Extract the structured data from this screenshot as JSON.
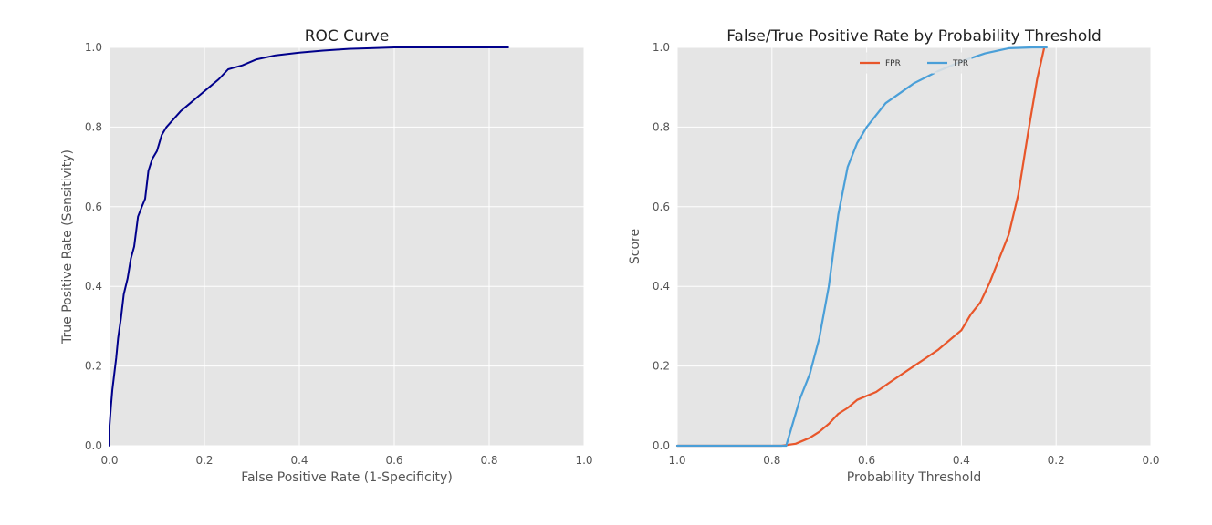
{
  "chart_data": [
    {
      "type": "line",
      "title": "ROC Curve",
      "xlabel": "False Positive Rate (1-Specificity)",
      "ylabel": "True Positive Rate (Sensitivity)",
      "xlim": [
        0.0,
        1.0
      ],
      "ylim": [
        0.0,
        1.0
      ],
      "xticks": [
        "0.0",
        "0.2",
        "0.4",
        "0.6",
        "0.8",
        "1.0"
      ],
      "yticks": [
        "0.0",
        "0.2",
        "0.4",
        "0.6",
        "0.8",
        "1.0"
      ],
      "grid": true,
      "series": [
        {
          "color": "#00008b",
          "points": [
            [
              0.0,
              0.0
            ],
            [
              0.0,
              0.05
            ],
            [
              0.003,
              0.1
            ],
            [
              0.006,
              0.14
            ],
            [
              0.01,
              0.18
            ],
            [
              0.014,
              0.22
            ],
            [
              0.018,
              0.27
            ],
            [
              0.024,
              0.32
            ],
            [
              0.03,
              0.38
            ],
            [
              0.038,
              0.42
            ],
            [
              0.045,
              0.47
            ],
            [
              0.052,
              0.5
            ],
            [
              0.06,
              0.575
            ],
            [
              0.068,
              0.6
            ],
            [
              0.075,
              0.62
            ],
            [
              0.082,
              0.69
            ],
            [
              0.09,
              0.72
            ],
            [
              0.1,
              0.74
            ],
            [
              0.11,
              0.78
            ],
            [
              0.12,
              0.8
            ],
            [
              0.135,
              0.82
            ],
            [
              0.15,
              0.84
            ],
            [
              0.17,
              0.86
            ],
            [
              0.19,
              0.88
            ],
            [
              0.21,
              0.9
            ],
            [
              0.23,
              0.92
            ],
            [
              0.25,
              0.945
            ],
            [
              0.28,
              0.955
            ],
            [
              0.31,
              0.97
            ],
            [
              0.35,
              0.98
            ],
            [
              0.4,
              0.987
            ],
            [
              0.45,
              0.992
            ],
            [
              0.5,
              0.996
            ],
            [
              0.55,
              0.998
            ],
            [
              0.6,
              1.0
            ],
            [
              0.7,
              1.0
            ],
            [
              0.84,
              1.0
            ]
          ]
        }
      ]
    },
    {
      "type": "line",
      "title": "False/True Positive Rate by Probability Threshold",
      "xlabel": "Probability Threshold",
      "ylabel": "Score",
      "xlim": [
        1.0,
        0.0
      ],
      "ylim": [
        0.0,
        1.0
      ],
      "xticks": [
        "1.0",
        "0.8",
        "0.6",
        "0.4",
        "0.2",
        "0.0"
      ],
      "yticks": [
        "0.0",
        "0.2",
        "0.4",
        "0.6",
        "0.8",
        "1.0"
      ],
      "grid": true,
      "legend": "top-center",
      "series": [
        {
          "name": "FPR",
          "color": "#e8562a",
          "points": [
            [
              1.0,
              0.0
            ],
            [
              0.78,
              0.0
            ],
            [
              0.75,
              0.005
            ],
            [
              0.72,
              0.02
            ],
            [
              0.7,
              0.035
            ],
            [
              0.68,
              0.055
            ],
            [
              0.66,
              0.08
            ],
            [
              0.64,
              0.095
            ],
            [
              0.62,
              0.115
            ],
            [
              0.58,
              0.135
            ],
            [
              0.55,
              0.16
            ],
            [
              0.5,
              0.2
            ],
            [
              0.45,
              0.24
            ],
            [
              0.42,
              0.27
            ],
            [
              0.4,
              0.29
            ],
            [
              0.38,
              0.33
            ],
            [
              0.36,
              0.36
            ],
            [
              0.34,
              0.41
            ],
            [
              0.32,
              0.47
            ],
            [
              0.3,
              0.53
            ],
            [
              0.28,
              0.63
            ],
            [
              0.26,
              0.78
            ],
            [
              0.24,
              0.92
            ],
            [
              0.225,
              1.0
            ]
          ]
        },
        {
          "name": "TPR",
          "color": "#4a9fd8",
          "points": [
            [
              1.0,
              0.0
            ],
            [
              0.77,
              0.0
            ],
            [
              0.76,
              0.04
            ],
            [
              0.74,
              0.12
            ],
            [
              0.72,
              0.18
            ],
            [
              0.7,
              0.27
            ],
            [
              0.68,
              0.4
            ],
            [
              0.66,
              0.58
            ],
            [
              0.64,
              0.7
            ],
            [
              0.62,
              0.76
            ],
            [
              0.6,
              0.8
            ],
            [
              0.56,
              0.86
            ],
            [
              0.5,
              0.91
            ],
            [
              0.45,
              0.94
            ],
            [
              0.4,
              0.965
            ],
            [
              0.35,
              0.985
            ],
            [
              0.3,
              0.998
            ],
            [
              0.25,
              1.0
            ],
            [
              0.22,
              1.0
            ]
          ]
        }
      ]
    }
  ]
}
